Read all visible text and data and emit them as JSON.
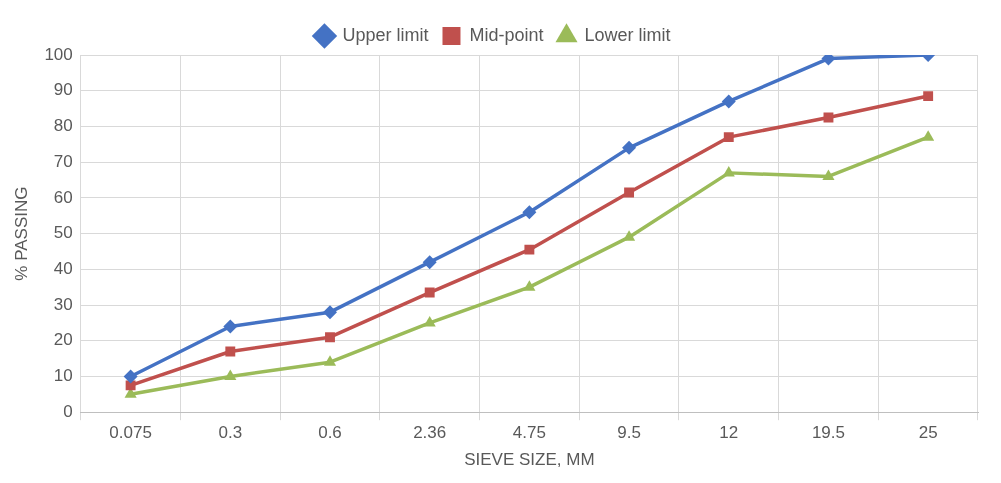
{
  "chart_data": {
    "type": "line",
    "xlabel": "SIEVE SIZE, MM",
    "ylabel": "% PASSING",
    "categories": [
      "0.075",
      "0.3",
      "0.6",
      "2.36",
      "4.75",
      "9.5",
      "12",
      "19.5",
      "25"
    ],
    "series": [
      {
        "name": "Upper limit",
        "color": "#4472c4",
        "marker": "diamond",
        "values": [
          10,
          24,
          28,
          42,
          56,
          74,
          87,
          99,
          100
        ]
      },
      {
        "name": "Mid-point",
        "color": "#c0504d",
        "marker": "square",
        "values": [
          7.5,
          17,
          21,
          33.5,
          45.5,
          61.5,
          77,
          82.5,
          88.5
        ]
      },
      {
        "name": "Lower limit",
        "color": "#9bbb59",
        "marker": "triangle",
        "values": [
          5,
          10,
          14,
          25,
          35,
          49,
          67,
          66,
          77
        ]
      }
    ],
    "ylim": [
      0,
      100
    ],
    "yticks": [
      0,
      10,
      20,
      30,
      40,
      50,
      60,
      70,
      80,
      90,
      100
    ],
    "grid": true,
    "legend": "top",
    "line_style": "solid"
  }
}
